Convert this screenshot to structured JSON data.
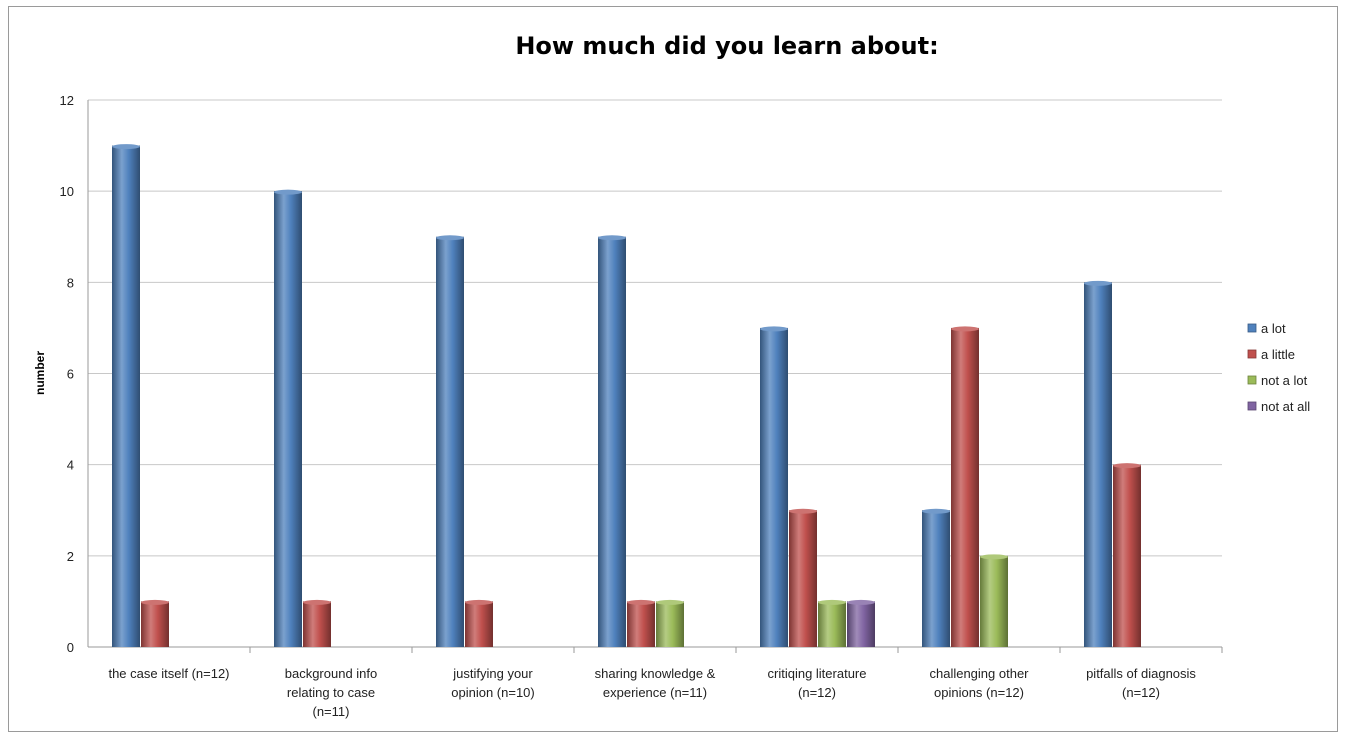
{
  "chart_data": {
    "type": "bar",
    "title": "How much did you learn about:",
    "xlabel": "",
    "ylabel": "number",
    "ylim": [
      0,
      12
    ],
    "yticks": [
      0,
      2,
      4,
      6,
      8,
      10,
      12
    ],
    "grid": true,
    "legend_position": "right",
    "categories": [
      [
        "the case itself (n=12)"
      ],
      [
        "background info",
        "relating to case",
        "(n=11)"
      ],
      [
        "justifying your",
        "opinion (n=10)"
      ],
      [
        "sharing knowledge &",
        "experience (n=11)"
      ],
      [
        "critiqing literature",
        "(n=12)"
      ],
      [
        "challenging other",
        "opinions (n=12)"
      ],
      [
        "pitfalls of diagnosis",
        "(n=12)"
      ]
    ],
    "series": [
      {
        "name": "a lot",
        "color": "#4F81BD",
        "values": [
          11,
          10,
          9,
          9,
          7,
          3,
          8
        ]
      },
      {
        "name": "a little",
        "color": "#C0504D",
        "values": [
          1,
          1,
          1,
          1,
          3,
          7,
          4
        ]
      },
      {
        "name": "not a lot",
        "color": "#9BBB59",
        "values": [
          0,
          0,
          0,
          1,
          1,
          2,
          0
        ]
      },
      {
        "name": "not at all",
        "color": "#8064A2",
        "values": [
          0,
          0,
          0,
          0,
          1,
          0,
          0
        ]
      }
    ]
  }
}
